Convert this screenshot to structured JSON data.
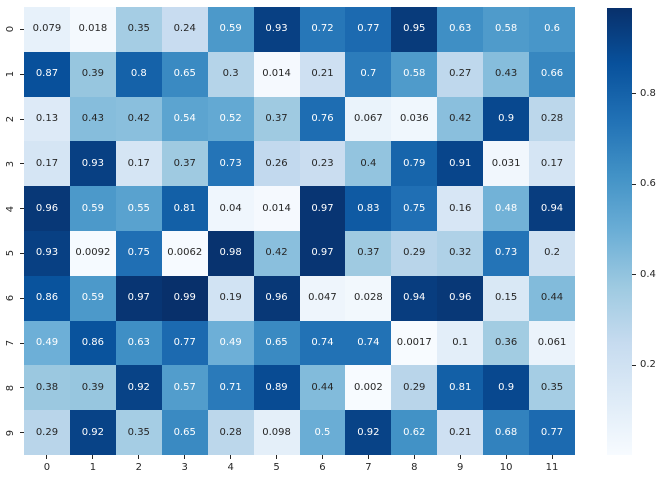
{
  "chart_data": {
    "type": "heatmap",
    "title": "",
    "xlabel": "",
    "ylabel": "",
    "grid": false,
    "x_tick_labels": [
      "0",
      "1",
      "2",
      "3",
      "4",
      "5",
      "6",
      "7",
      "8",
      "9",
      "10",
      "11"
    ],
    "y_tick_labels": [
      "0",
      "1",
      "2",
      "3",
      "4",
      "5",
      "6",
      "7",
      "8",
      "9"
    ],
    "values": [
      [
        0.079,
        0.018,
        0.35,
        0.24,
        0.59,
        0.93,
        0.72,
        0.77,
        0.95,
        0.63,
        0.58,
        0.6
      ],
      [
        0.87,
        0.39,
        0.8,
        0.65,
        0.3,
        0.014,
        0.21,
        0.7,
        0.58,
        0.27,
        0.43,
        0.66
      ],
      [
        0.13,
        0.43,
        0.42,
        0.54,
        0.52,
        0.37,
        0.76,
        0.067,
        0.036,
        0.42,
        0.9,
        0.28
      ],
      [
        0.17,
        0.93,
        0.17,
        0.37,
        0.73,
        0.26,
        0.23,
        0.4,
        0.79,
        0.91,
        0.031,
        0.17
      ],
      [
        0.96,
        0.59,
        0.55,
        0.81,
        0.04,
        0.014,
        0.97,
        0.83,
        0.75,
        0.16,
        0.48,
        0.94
      ],
      [
        0.93,
        0.0092,
        0.75,
        0.0062,
        0.98,
        0.42,
        0.97,
        0.37,
        0.29,
        0.32,
        0.73,
        0.2
      ],
      [
        0.86,
        0.59,
        0.97,
        0.99,
        0.19,
        0.96,
        0.047,
        0.028,
        0.94,
        0.96,
        0.15,
        0.44
      ],
      [
        0.49,
        0.86,
        0.63,
        0.77,
        0.49,
        0.65,
        0.74,
        0.74,
        0.0017,
        0.1,
        0.36,
        0.061
      ],
      [
        0.38,
        0.39,
        0.92,
        0.57,
        0.71,
        0.89,
        0.44,
        0.002,
        0.29,
        0.81,
        0.9,
        0.35
      ],
      [
        0.29,
        0.92,
        0.35,
        0.65,
        0.28,
        0.098,
        0.5,
        0.92,
        0.62,
        0.21,
        0.68,
        0.77
      ]
    ],
    "vmin": 0.0017,
    "vmax": 0.99,
    "colormap": {
      "name": "Blues",
      "stops": [
        "#f7fbff",
        "#deebf7",
        "#c6dbef",
        "#9ecae1",
        "#6baed6",
        "#4292c6",
        "#2171b5",
        "#08519c",
        "#08306b"
      ]
    },
    "annotation_colors": {
      "on_light": "#262626",
      "on_dark": "#ffffff"
    },
    "colorbar": {
      "position": "right",
      "tick_values": [
        0.2,
        0.4,
        0.6,
        0.8
      ],
      "tick_labels": [
        "0.2",
        "0.4",
        "0.6",
        "0.8"
      ]
    },
    "tick_color": "#262626",
    "y_tick_rotation_deg": 90
  }
}
